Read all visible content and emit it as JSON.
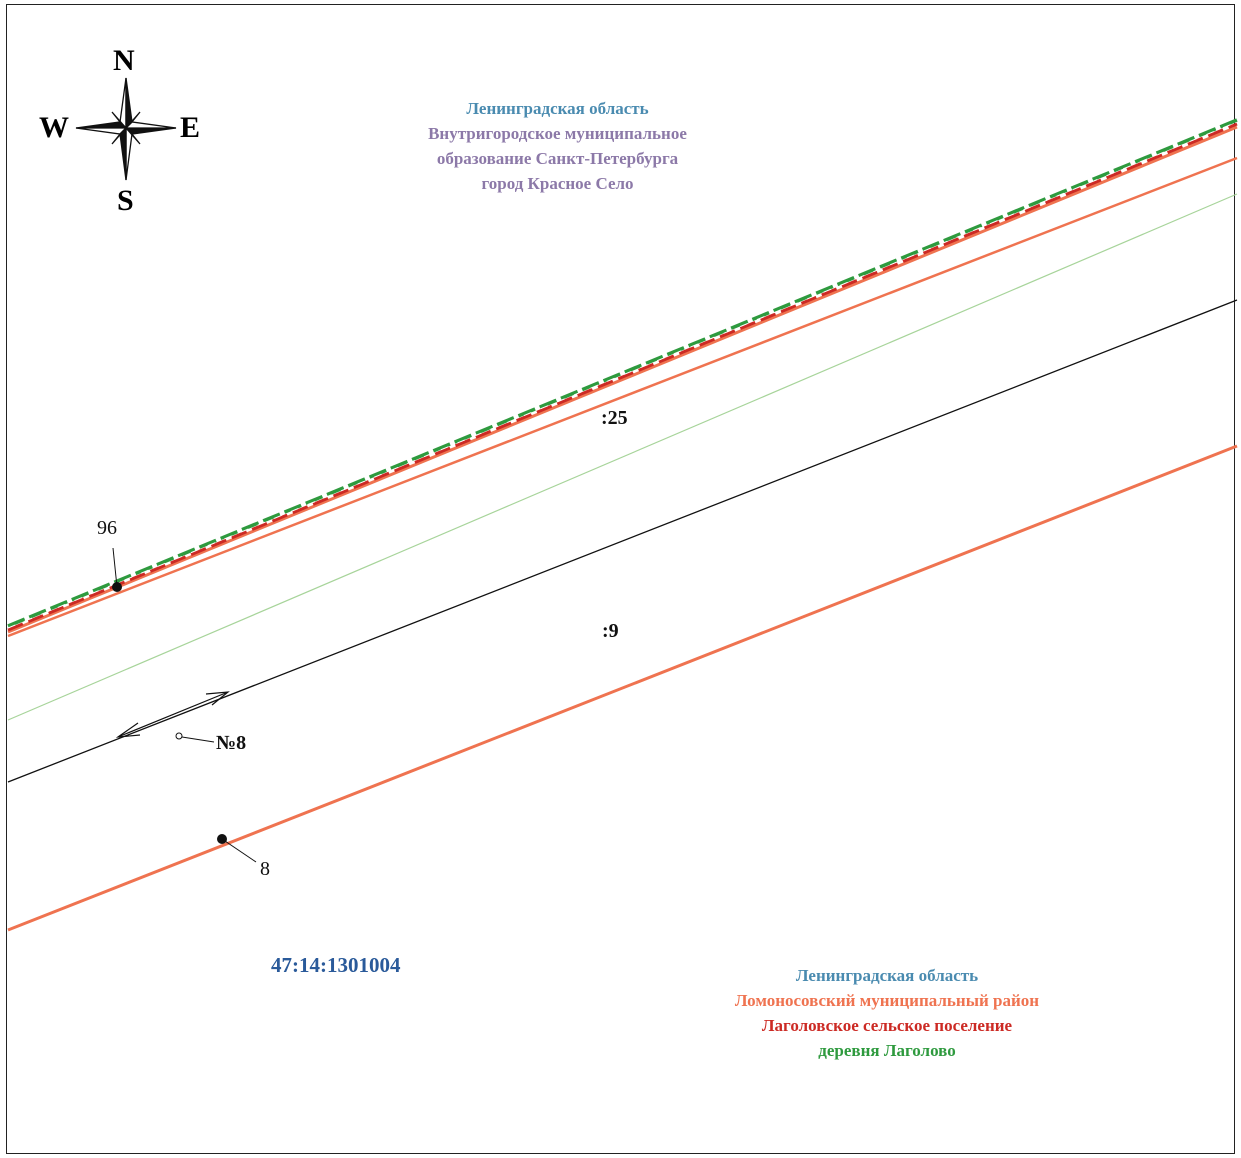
{
  "compass": {
    "n": "N",
    "s": "S",
    "w": "W",
    "e": "E"
  },
  "region_top": {
    "line1": "Ленинградская область",
    "line2": "Внутригородское муниципальное",
    "line3": "образование Санкт-Петербурга",
    "line4": "город Красное Село"
  },
  "region_bottom": {
    "line1": "Ленинградская область",
    "line2": "Ломоносовский муниципальный район",
    "line3": "Лаголовское сельское поселение",
    "line4": "деревня Лаголово"
  },
  "parcels": {
    "p25": ":25",
    "p9": ":9"
  },
  "points": {
    "pt96": "96",
    "pt8": "8",
    "no8": "№8"
  },
  "cadastral_block": "47:14:1301004",
  "colors": {
    "region_blue": "#4a8bb0",
    "municipal_purple": "#8c79a8",
    "district_orange": "#ef7350",
    "settlement_red": "#cc2a24",
    "village_green": "#2e9a3e",
    "parcel_line_orange": "#ef7350",
    "cadastral_blue": "#2a5a9a"
  }
}
